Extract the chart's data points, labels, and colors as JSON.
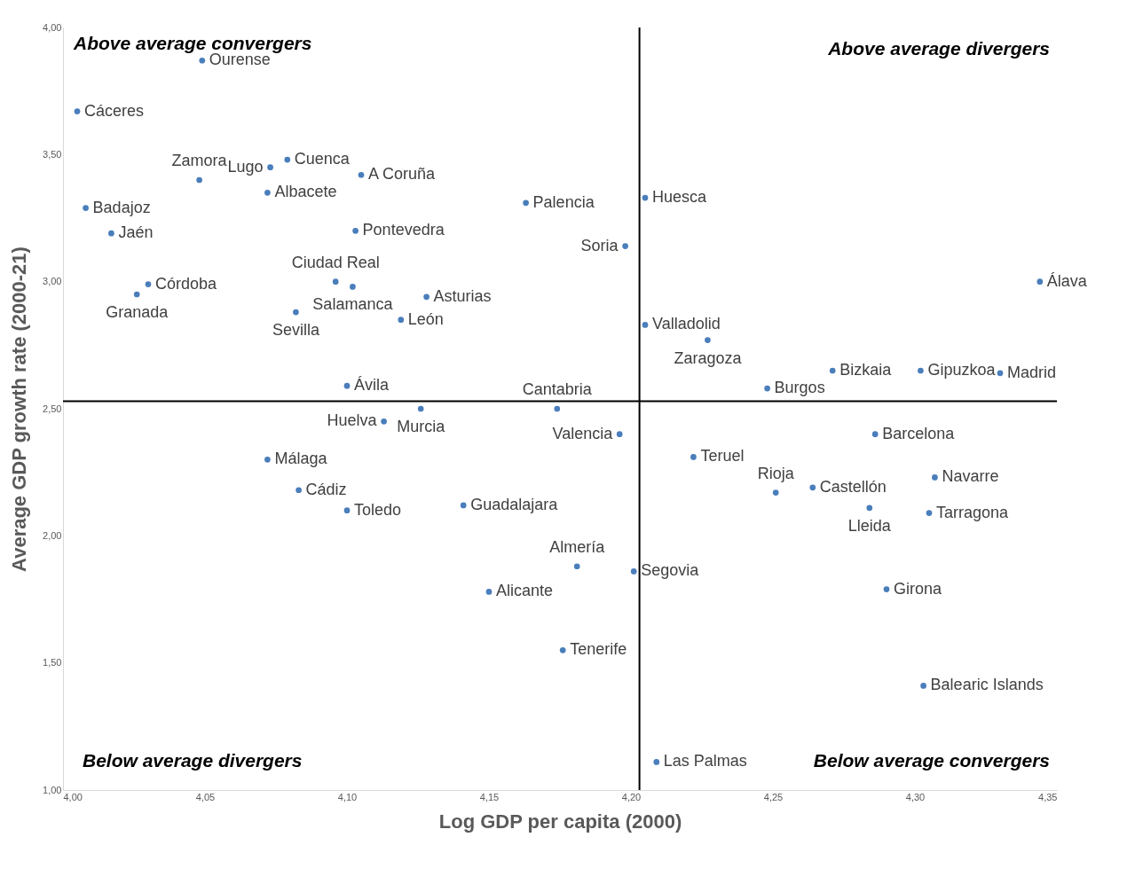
{
  "chart_data": {
    "type": "scatter",
    "xlabel": "Log GDP per capita (2000)",
    "ylabel": "Average GDP growth rate (2000-21)",
    "x": [
      4.049,
      4.005,
      4.079,
      4.073,
      4.105,
      4.048,
      4.072,
      4.008,
      4.163,
      4.205,
      4.017,
      4.103,
      4.198,
      4.096,
      4.03,
      4.102,
      4.344,
      4.026,
      4.128,
      4.082,
      4.119,
      4.205,
      4.227,
      4.271,
      4.302,
      4.33,
      4.1,
      4.248,
      4.126,
      4.174,
      4.113,
      4.196,
      4.286,
      4.072,
      4.222,
      4.307,
      4.083,
      4.264,
      4.251,
      4.141,
      4.1,
      4.284,
      4.305,
      4.181,
      4.201,
      4.15,
      4.29,
      4.176,
      4.303,
      4.209
    ],
    "series": [
      {
        "color": "#4a7ebb",
        "values": [
          3.87,
          3.67,
          3.48,
          3.45,
          3.42,
          3.4,
          3.35,
          3.29,
          3.31,
          3.33,
          3.19,
          3.2,
          3.14,
          3.0,
          2.99,
          2.98,
          3.0,
          2.95,
          2.94,
          2.88,
          2.85,
          2.83,
          2.77,
          2.65,
          2.65,
          2.64,
          2.59,
          2.58,
          2.5,
          2.5,
          2.45,
          2.4,
          2.4,
          2.3,
          2.31,
          2.23,
          2.18,
          2.19,
          2.17,
          2.12,
          2.1,
          2.11,
          2.09,
          1.88,
          1.86,
          1.78,
          1.79,
          1.55,
          1.41,
          1.11
        ]
      }
    ],
    "marker": "circle",
    "grid": false,
    "xlim": [
      4.0,
      4.35
    ],
    "xticks": [
      {
        "value": 4.0,
        "label": "4,00"
      },
      {
        "value": 4.05,
        "label": "4,05"
      },
      {
        "value": 4.1,
        "label": "4,10"
      },
      {
        "value": 4.15,
        "label": "4,15"
      },
      {
        "value": 4.2,
        "label": "4,20"
      },
      {
        "value": 4.25,
        "label": "4,25"
      },
      {
        "value": 4.3,
        "label": "4,30"
      },
      {
        "value": 4.35,
        "label": "4,35"
      }
    ],
    "ylim": [
      1.0,
      4.0
    ],
    "yticks": [
      {
        "value": 1.0,
        "label": "1,00"
      },
      {
        "value": 1.5,
        "label": "1,50"
      },
      {
        "value": 2.0,
        "label": "2,00"
      },
      {
        "value": 2.5,
        "label": "2,50"
      },
      {
        "value": 3.0,
        "label": "3,00"
      },
      {
        "value": 3.5,
        "label": "3,50"
      },
      {
        "value": 4.0,
        "label": "4,00"
      }
    ],
    "ref_lines": [
      {
        "axis": "x",
        "value": 4.203,
        "color": "#000000"
      },
      {
        "axis": "y",
        "value": 2.53,
        "color": "#000000"
      }
    ],
    "annotations": [
      "Above average convergers",
      "Above average divergers",
      "Below average divergers",
      "Below average convergers",
      {
        "text": "Ourense",
        "x": 4.049,
        "y": 3.87
      },
      {
        "text": "Cáceres",
        "x": 4.005,
        "y": 3.67
      },
      {
        "text": "Cuenca",
        "x": 4.079,
        "y": 3.48
      },
      {
        "text": "Lugo",
        "x": 4.073,
        "y": 3.45
      },
      {
        "text": "A Coruña",
        "x": 4.105,
        "y": 3.42
      },
      {
        "text": "Zamora",
        "x": 4.048,
        "y": 3.4
      },
      {
        "text": "Albacete",
        "x": 4.072,
        "y": 3.35
      },
      {
        "text": "Badajoz",
        "x": 4.008,
        "y": 3.29
      },
      {
        "text": "Palencia",
        "x": 4.163,
        "y": 3.31
      },
      {
        "text": "Huesca",
        "x": 4.205,
        "y": 3.33
      },
      {
        "text": "Jaén",
        "x": 4.017,
        "y": 3.19
      },
      {
        "text": "Pontevedra",
        "x": 4.103,
        "y": 3.2
      },
      {
        "text": "Soria",
        "x": 4.198,
        "y": 3.14
      },
      {
        "text": "Ciudad Real",
        "x": 4.096,
        "y": 3.0
      },
      {
        "text": "Córdoba",
        "x": 4.03,
        "y": 2.99
      },
      {
        "text": "Salamanca",
        "x": 4.102,
        "y": 2.98
      },
      {
        "text": "Álava",
        "x": 4.344,
        "y": 3.0
      },
      {
        "text": "Granada",
        "x": 4.026,
        "y": 2.95
      },
      {
        "text": "Asturias",
        "x": 4.128,
        "y": 2.94
      },
      {
        "text": "Sevilla",
        "x": 4.082,
        "y": 2.88
      },
      {
        "text": "León",
        "x": 4.119,
        "y": 2.85
      },
      {
        "text": "Valladolid",
        "x": 4.205,
        "y": 2.83
      },
      {
        "text": "Zaragoza",
        "x": 4.227,
        "y": 2.77
      },
      {
        "text": "Bizkaia",
        "x": 4.271,
        "y": 2.65
      },
      {
        "text": "Gipuzkoa",
        "x": 4.302,
        "y": 2.65
      },
      {
        "text": "Madrid",
        "x": 4.33,
        "y": 2.64
      },
      {
        "text": "Ávila",
        "x": 4.1,
        "y": 2.59
      },
      {
        "text": "Burgos",
        "x": 4.248,
        "y": 2.58
      },
      {
        "text": "Murcia",
        "x": 4.126,
        "y": 2.5
      },
      {
        "text": "Cantabria",
        "x": 4.174,
        "y": 2.5
      },
      {
        "text": "Huelva",
        "x": 4.113,
        "y": 2.45
      },
      {
        "text": "Valencia",
        "x": 4.196,
        "y": 2.4
      },
      {
        "text": "Barcelona",
        "x": 4.286,
        "y": 2.4
      },
      {
        "text": "Málaga",
        "x": 4.072,
        "y": 2.3
      },
      {
        "text": "Teruel",
        "x": 4.222,
        "y": 2.31
      },
      {
        "text": "Navarre",
        "x": 4.307,
        "y": 2.23
      },
      {
        "text": "Cádiz",
        "x": 4.083,
        "y": 2.18
      },
      {
        "text": "Castellón",
        "x": 4.264,
        "y": 2.19
      },
      {
        "text": "Rioja",
        "x": 4.251,
        "y": 2.17
      },
      {
        "text": "Guadalajara",
        "x": 4.141,
        "y": 2.12
      },
      {
        "text": "Toledo",
        "x": 4.1,
        "y": 2.1
      },
      {
        "text": "Lleida",
        "x": 4.284,
        "y": 2.11
      },
      {
        "text": "Tarragona",
        "x": 4.305,
        "y": 2.09
      },
      {
        "text": "Almería",
        "x": 4.181,
        "y": 1.88
      },
      {
        "text": "Segovia",
        "x": 4.201,
        "y": 1.86
      },
      {
        "text": "Alicante",
        "x": 4.15,
        "y": 1.78
      },
      {
        "text": "Girona",
        "x": 4.29,
        "y": 1.79
      },
      {
        "text": "Tenerife",
        "x": 4.176,
        "y": 1.55
      },
      {
        "text": "Balearic Islands",
        "x": 4.303,
        "y": 1.41
      },
      {
        "text": "Las Palmas",
        "x": 4.209,
        "y": 1.11
      }
    ]
  }
}
